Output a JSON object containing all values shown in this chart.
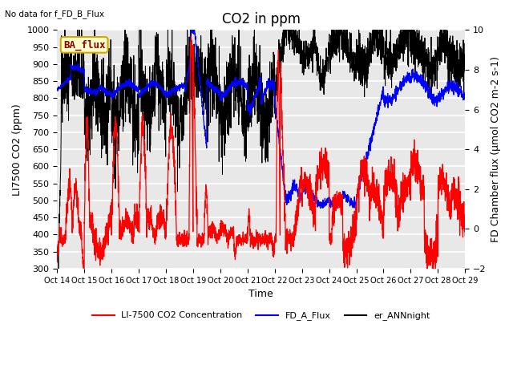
{
  "title": "CO2 in ppm",
  "top_left_text": "No data for f_FD_B_Flux",
  "box_label": "BA_flux",
  "xlabel": "Time",
  "ylabel_left": "LI7500 CO2 (ppm)",
  "ylabel_right": "FD Chamber flux (μmol CO2 m-2 s-1)",
  "ylim_left": [
    300,
    1000
  ],
  "ylim_right": [
    -2,
    10
  ],
  "xlim": [
    0,
    15
  ],
  "xtick_labels": [
    "Oct 14",
    "Oct 15",
    "Oct 16",
    "Oct 17",
    "Oct 18",
    "Oct 19",
    "Oct 20",
    "Oct 21",
    "Oct 22",
    "Oct 23",
    "Oct 24",
    "Oct 25",
    "Oct 26",
    "Oct 27",
    "Oct 28",
    "Oct 29"
  ],
  "legend_labels": [
    "LI-7500 CO2 Concentration",
    "FD_A_Flux",
    "er_ANNnight"
  ],
  "background_color": "#e8e8e8",
  "grid_color": "white",
  "title_fontsize": 12,
  "label_fontsize": 9,
  "tick_fontsize": 8
}
